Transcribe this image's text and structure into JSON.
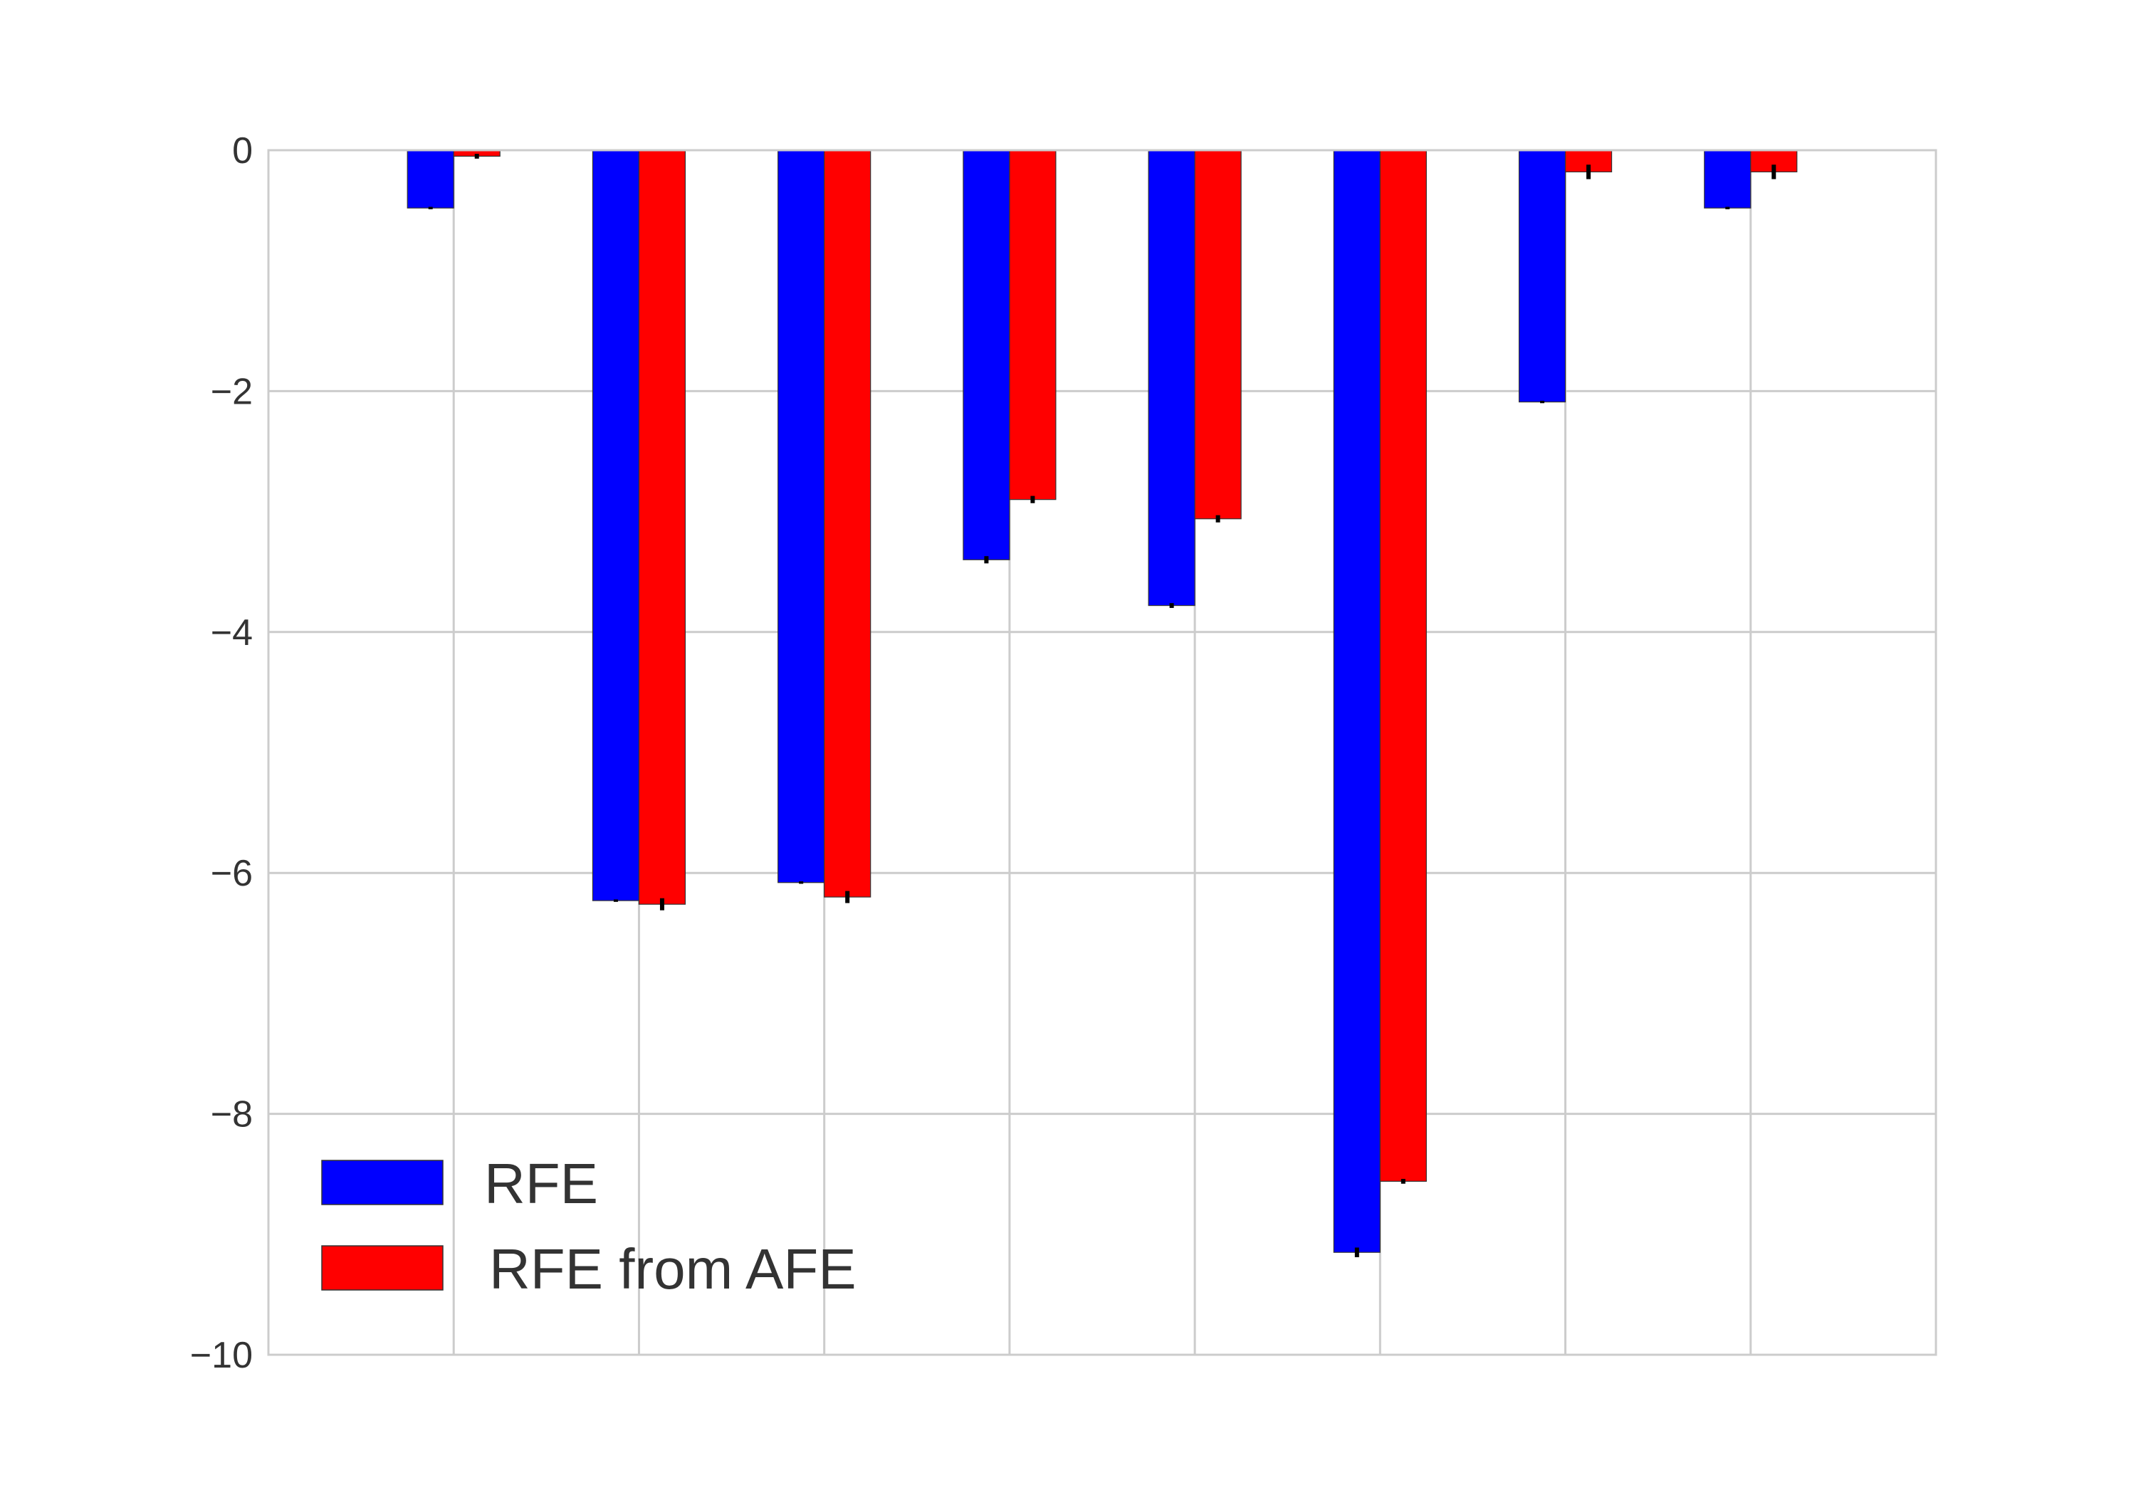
{
  "chart_data": {
    "type": "bar",
    "title": "",
    "xlabel": "",
    "ylabel": "",
    "ylim": [
      -10,
      0
    ],
    "yticks": [
      0,
      -2,
      -4,
      -6,
      -8,
      -10
    ],
    "ytick_labels": [
      "0",
      "−2",
      "−4",
      "−6",
      "−8",
      "−10"
    ],
    "grid": true,
    "legend_position": "lower-left",
    "categories": [
      "",
      "",
      "",
      "",
      "",
      "",
      "",
      ""
    ],
    "series": [
      {
        "name": "RFE",
        "color": "#0000ff",
        "values": [
          -0.48,
          -6.23,
          -6.08,
          -3.4,
          -3.78,
          -9.15,
          -2.09,
          -0.48
        ],
        "errors": [
          0.01,
          0.01,
          0.01,
          0.03,
          0.02,
          0.04,
          0.01,
          0.01
        ]
      },
      {
        "name": "RFE from AFE",
        "color": "#ff0000",
        "values": [
          -0.05,
          -6.26,
          -6.2,
          -2.9,
          -3.06,
          -8.56,
          -0.18,
          -0.18
        ],
        "errors": [
          0.02,
          0.05,
          0.05,
          0.03,
          0.03,
          0.02,
          0.06,
          0.06
        ]
      }
    ]
  }
}
